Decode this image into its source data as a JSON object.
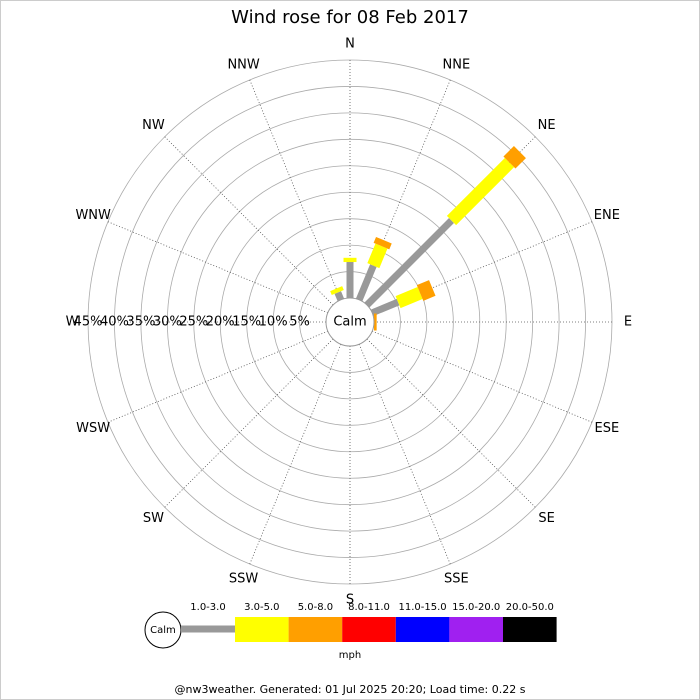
{
  "chart_data": {
    "type": "wind_rose",
    "title": "Wind rose for 08 Feb 2017",
    "directions": [
      "N",
      "NNE",
      "NE",
      "ENE",
      "E",
      "ESE",
      "SE",
      "SSE",
      "S",
      "SSW",
      "SW",
      "WSW",
      "W",
      "WNW",
      "NW",
      "NNW"
    ],
    "center_label": "Calm",
    "series": [
      {
        "name": "1.0-3.0",
        "color": "#999999",
        "values": [
          6.8,
          7,
          22.6,
          5.3,
          0,
          0,
          0,
          0,
          0,
          0,
          0,
          0,
          0,
          0,
          0,
          1.5
        ]
      },
      {
        "name": "3.0-5.0",
        "color": "#ffff00",
        "values": [
          0.8,
          4,
          15.5,
          4.5,
          0,
          0,
          0,
          0,
          0,
          0,
          0,
          0,
          0,
          0,
          0,
          0.8
        ]
      },
      {
        "name": "5.0-8.0",
        "color": "#ff9f00",
        "values": [
          0,
          1.2,
          2.8,
          2.5,
          0.5,
          0,
          0,
          0,
          0,
          0,
          0,
          0,
          0,
          0,
          0,
          0
        ]
      },
      {
        "name": "8.0-11.0",
        "color": "#ff0000",
        "values": [
          0,
          0,
          0,
          0,
          0,
          0,
          0,
          0,
          0,
          0,
          0,
          0,
          0,
          0,
          0,
          0
        ]
      },
      {
        "name": "11.0-15.0",
        "color": "#0000ff",
        "values": [
          0,
          0,
          0,
          0,
          0,
          0,
          0,
          0,
          0,
          0,
          0,
          0,
          0,
          0,
          0,
          0
        ]
      },
      {
        "name": "15.0-20.0",
        "color": "#a020f0",
        "values": [
          0,
          0,
          0,
          0,
          0,
          0,
          0,
          0,
          0,
          0,
          0,
          0,
          0,
          0,
          0,
          0
        ]
      },
      {
        "name": "20.0-50.0",
        "color": "#000000",
        "values": [
          0,
          0,
          0,
          0,
          0,
          0,
          0,
          0,
          0,
          0,
          0,
          0,
          0,
          0,
          0,
          0
        ]
      }
    ],
    "rlim": [
      0,
      45
    ],
    "rticks": [
      {
        "value": 5,
        "label": "5%"
      },
      {
        "value": 10,
        "label": "10%"
      },
      {
        "value": 15,
        "label": "15%"
      },
      {
        "value": 20,
        "label": "20%"
      },
      {
        "value": 25,
        "label": "25%"
      },
      {
        "value": 30,
        "label": "30%"
      },
      {
        "value": 35,
        "label": "35%"
      },
      {
        "value": 40,
        "label": "40%"
      },
      {
        "value": 45,
        "label": "45%"
      }
    ],
    "unit": "mph",
    "footer": "@nw3weather. Generated: 01 Jul 2025 20:20; Load time: 0.22 s"
  }
}
